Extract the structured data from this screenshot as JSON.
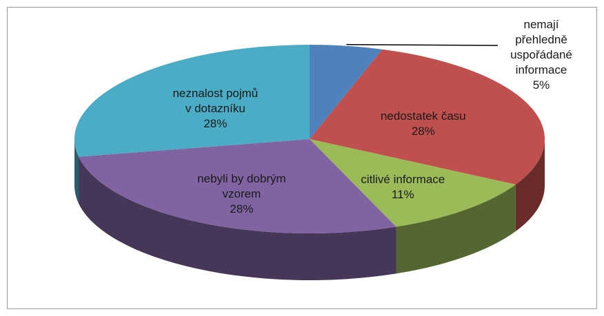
{
  "chart_data": {
    "type": "pie3d",
    "categories": [
      "nemají přehledně uspořádané informace",
      "nedostatek času",
      "citlivé informace",
      "nebyli by dobrým vzorem",
      "neznalost pojmů v dotazníku"
    ],
    "values": [
      5,
      28,
      11,
      28,
      28
    ],
    "value_labels": [
      "5%",
      "28%",
      "11%",
      "28%",
      "28%"
    ],
    "colors": [
      "#4f81bd",
      "#c0504d",
      "#9bbb59",
      "#8064a2",
      "#4bacc6"
    ]
  }
}
